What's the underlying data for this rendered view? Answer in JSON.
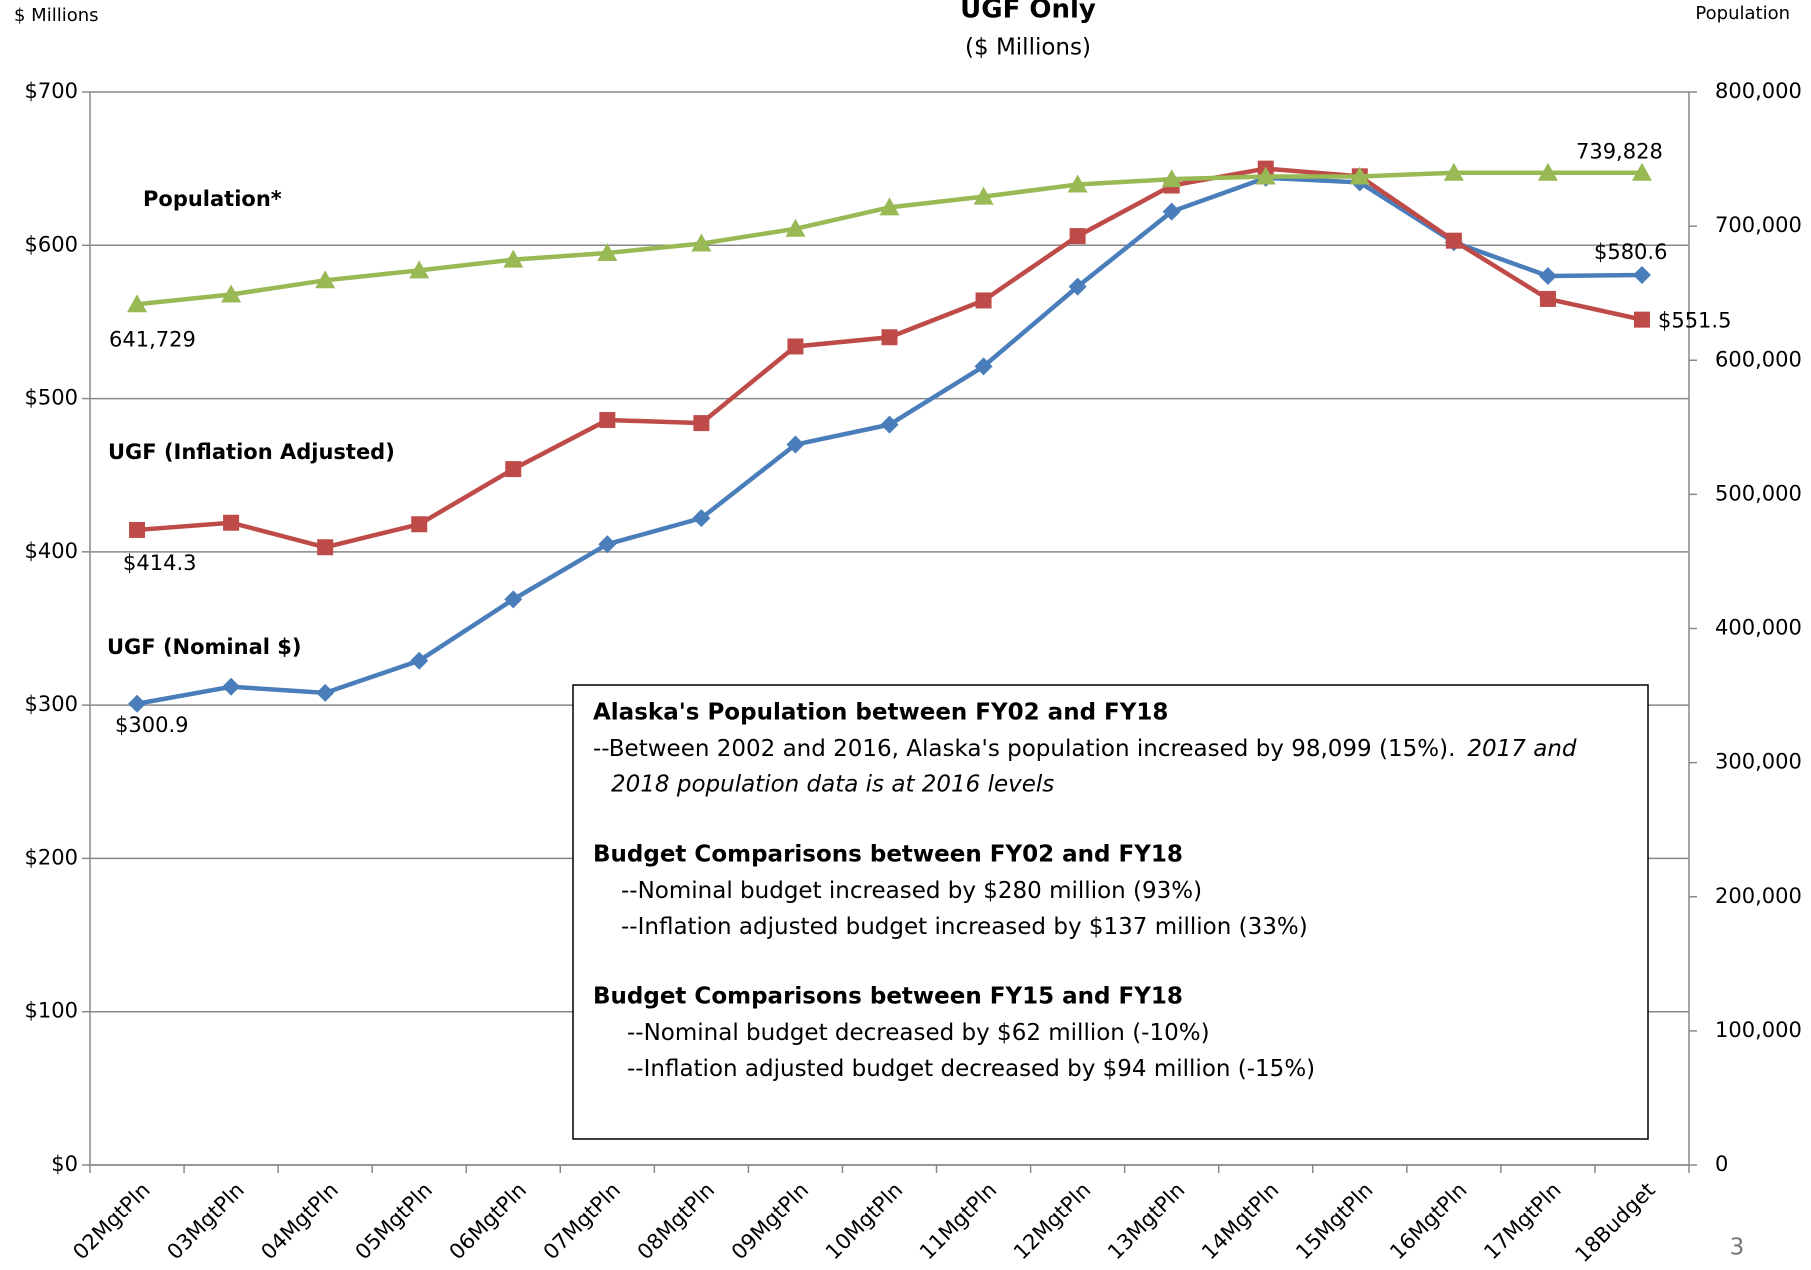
{
  "chart_data": {
    "type": "line",
    "title": "UGF Only",
    "subtitle": "($ Millions)",
    "y_label": "$ Millions",
    "y2_label": "Population",
    "page_number": "3",
    "categories": [
      "02MgtPln",
      "03MgtPln",
      "04MgtPln",
      "05MgtPln",
      "06MgtPln",
      "07MgtPln",
      "08MgtPln",
      "09MgtPln",
      "10MgtPln",
      "11MgtPln",
      "12MgtPln",
      "13MgtPln",
      "14MgtPln",
      "15MgtPln",
      "16MgtPln",
      "17MgtPln",
      "18Budget"
    ],
    "series": [
      {
        "name": "UGF (Nominal $)",
        "color": "#4a7ebb",
        "marker": "diamond",
        "values": [
          300.9,
          312,
          308,
          329,
          369,
          405,
          422,
          470,
          483,
          521,
          573,
          622,
          644,
          641,
          602,
          580,
          580.6
        ],
        "value_labels": [
          "$300.9",
          null,
          null,
          null,
          null,
          null,
          null,
          null,
          null,
          null,
          null,
          null,
          null,
          null,
          null,
          null,
          "$580.6"
        ]
      },
      {
        "name": "UGF (Inflation Adjusted)",
        "color": "#be4b48",
        "marker": "square",
        "values": [
          414.3,
          419,
          403,
          418,
          454,
          486,
          484,
          534,
          540,
          564,
          606,
          639,
          650,
          645,
          603,
          565,
          551.5
        ],
        "value_labels": [
          "$414.3",
          null,
          null,
          null,
          null,
          null,
          null,
          null,
          null,
          null,
          null,
          null,
          null,
          null,
          null,
          null,
          "$551.5"
        ]
      },
      {
        "name": "Population*",
        "color": "#98b954",
        "marker": "triangle",
        "axis": "y2",
        "values": [
          641729,
          649000,
          659600,
          667000,
          675000,
          680000,
          687000,
          698000,
          714000,
          722000,
          731000,
          735000,
          737000,
          737000,
          739828,
          739828,
          739828
        ],
        "value_labels": [
          "641,729",
          null,
          null,
          null,
          null,
          null,
          null,
          null,
          null,
          null,
          null,
          null,
          null,
          null,
          null,
          null,
          "739,828"
        ]
      }
    ],
    "ylim": [
      0,
      700
    ],
    "yticks": [
      {
        "value": 0,
        "label": "$0"
      },
      {
        "value": 100,
        "label": "$100"
      },
      {
        "value": 200,
        "label": "$200"
      },
      {
        "value": 300,
        "label": "$300"
      },
      {
        "value": 400,
        "label": "$400"
      },
      {
        "value": 500,
        "label": "$500"
      },
      {
        "value": 600,
        "label": "$600"
      },
      {
        "value": 700,
        "label": "$700"
      }
    ],
    "y2lim": [
      0,
      800000
    ],
    "y2ticks": [
      0,
      {
        "value": 100000,
        "label": "100,000"
      },
      {
        "value": 200000,
        "label": "200,000"
      },
      {
        "value": 300000,
        "label": "300,000"
      },
      {
        "value": 400000,
        "label": "400,000"
      },
      {
        "value": 500000,
        "label": "500,000"
      },
      {
        "value": 600000,
        "label": "600,000"
      },
      {
        "value": 700000,
        "label": "700,000"
      },
      {
        "value": 800000,
        "label": "800,000"
      }
    ],
    "grid": true,
    "annotation": {
      "sections": [
        {
          "heading": "Alaska's Population  between FY02 and FY18",
          "lines": [
            "--Between 2002 and 2016, Alaska's population increased by  98,099 (15%)."
          ],
          "italic": [
            "2017 and",
            "2018 population data is at 2016 levels"
          ]
        },
        {
          "heading": "Budget Comparisons between FY02 and FY18",
          "lines": [
            "--Nominal budget increased by $280 million (93%)",
            "--Inflation adjusted budget increased by $137 million (33%)"
          ]
        },
        {
          "heading": "Budget Comparisons between FY15 and FY18",
          "lines": [
            "--Nominal budget decreased by $62 million (-10%)",
            "--Inflation adjusted budget decreased by $94 million (-15%)"
          ]
        }
      ]
    }
  }
}
